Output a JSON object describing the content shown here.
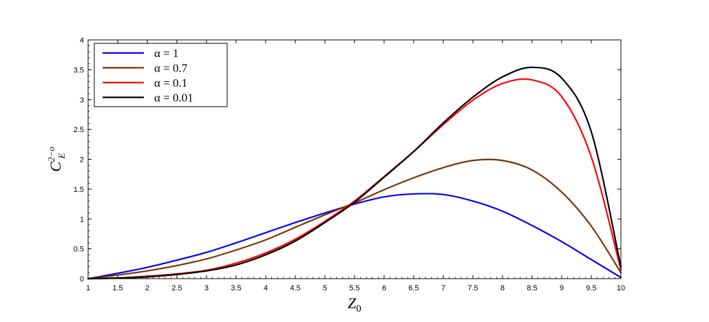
{
  "chart_data": {
    "type": "line",
    "title": "",
    "xlabel": "Z",
    "xlabel_sub": "0",
    "ylabel": "C",
    "ylabel_sup": "2−o",
    "ylabel_sub": "E",
    "xlim": [
      1,
      10
    ],
    "ylim": [
      0,
      4
    ],
    "x_ticks": [
      "1",
      "1.5",
      "2",
      "2.5",
      "3",
      "3.5",
      "4",
      "4.5",
      "5",
      "5.5",
      "6",
      "6.5",
      "7",
      "7.5",
      "8",
      "8.5",
      "9",
      "9.5",
      "10"
    ],
    "y_ticks": [
      "0",
      "0.5",
      "1",
      "1.5",
      "2",
      "2.5",
      "3",
      "3.5",
      "4"
    ],
    "grid": false,
    "legend_position": "top-left",
    "x": [
      1,
      1.5,
      2,
      2.5,
      3,
      3.5,
      4,
      4.5,
      5,
      5.5,
      6,
      6.5,
      7,
      7.5,
      8,
      8.5,
      9,
      9.5,
      10
    ],
    "series": [
      {
        "name": "α = 1",
        "color": "#0000ff",
        "values": [
          0,
          0.09,
          0.19,
          0.31,
          0.44,
          0.6,
          0.77,
          0.94,
          1.1,
          1.25,
          1.37,
          1.42,
          1.41,
          1.3,
          1.13,
          0.89,
          0.62,
          0.32,
          0.02
        ]
      },
      {
        "name": "α = 0.7",
        "color": "#7a3306",
        "values": [
          0,
          0.06,
          0.13,
          0.22,
          0.33,
          0.48,
          0.65,
          0.86,
          1.07,
          1.27,
          1.49,
          1.69,
          1.86,
          1.98,
          1.98,
          1.82,
          1.45,
          0.88,
          0.1
        ]
      },
      {
        "name": "α = 0.1",
        "color": "#ff0000",
        "values": [
          0,
          0.01,
          0.04,
          0.08,
          0.14,
          0.26,
          0.43,
          0.66,
          0.96,
          1.3,
          1.71,
          2.13,
          2.58,
          2.99,
          3.27,
          3.33,
          3.05,
          2.04,
          0.15
        ]
      },
      {
        "name": "α = 0.01",
        "color": "#000000",
        "values": [
          0,
          0.01,
          0.03,
          0.07,
          0.13,
          0.23,
          0.4,
          0.63,
          0.94,
          1.28,
          1.7,
          2.13,
          2.61,
          3.04,
          3.38,
          3.54,
          3.36,
          2.46,
          0.2
        ]
      }
    ]
  }
}
